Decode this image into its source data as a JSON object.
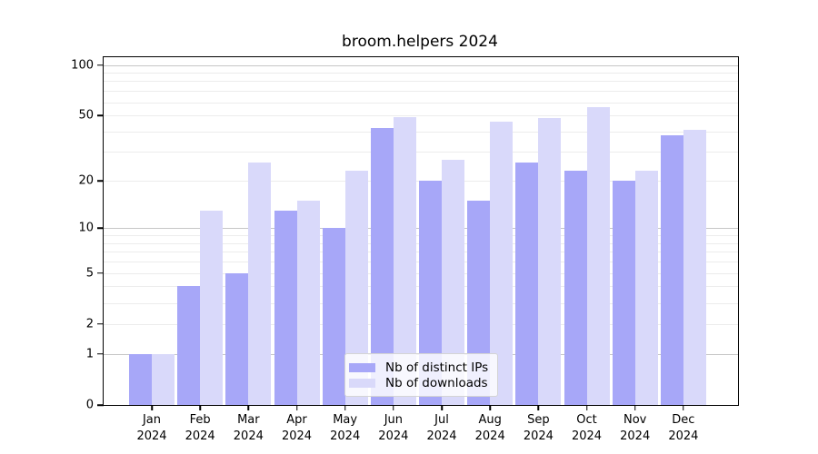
{
  "title": "broom.helpers 2024",
  "chart_data": {
    "type": "bar",
    "title": "broom.helpers 2024",
    "xlabel": "",
    "ylabel": "",
    "y_scale": "log1p",
    "ylim": [
      0,
      111
    ],
    "grid": true,
    "legend_position": "bottom-center",
    "months": [
      "Jan",
      "Feb",
      "Mar",
      "Apr",
      "May",
      "Jun",
      "Jul",
      "Aug",
      "Sep",
      "Oct",
      "Nov",
      "Dec"
    ],
    "year": "2024",
    "y_ticks": [
      0,
      1,
      2,
      5,
      10,
      20,
      50,
      100
    ],
    "y_major_gridlines": [
      1,
      10,
      100
    ],
    "y_minor_gridlines": [
      2,
      3,
      4,
      5,
      6,
      7,
      8,
      9,
      20,
      30,
      40,
      50,
      60,
      70,
      80,
      90
    ],
    "series": [
      {
        "name": "Nb of distinct IPs",
        "color": "#a7a7f8",
        "values": [
          1,
          4,
          5,
          13,
          10,
          42,
          20,
          15,
          26,
          23,
          20,
          38
        ]
      },
      {
        "name": "Nb of downloads",
        "color": "#d9d9fa",
        "values": [
          1,
          13,
          26,
          15,
          23,
          49,
          27,
          46,
          48,
          56,
          23,
          41
        ]
      }
    ]
  }
}
